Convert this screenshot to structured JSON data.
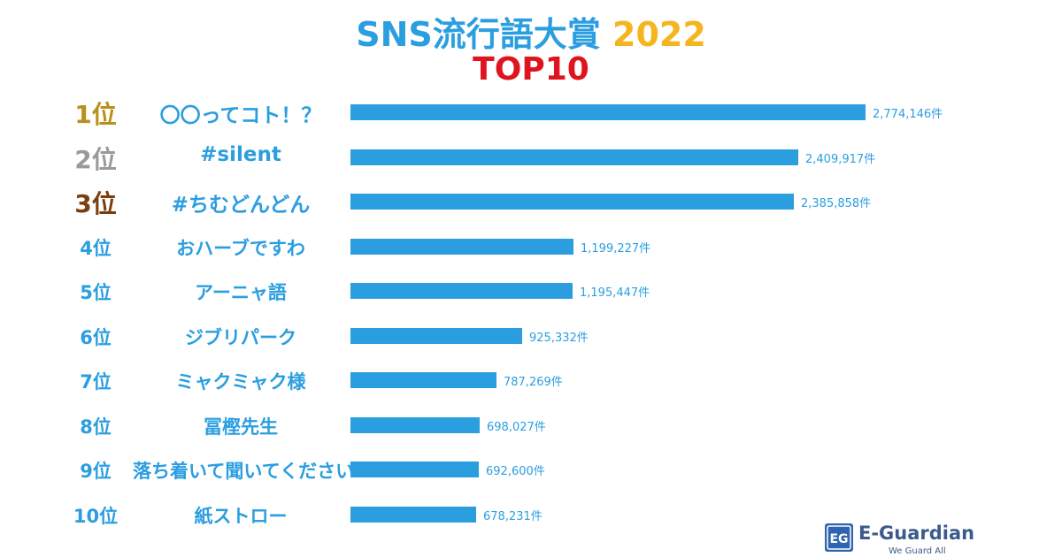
{
  "chart_data": {
    "type": "bar",
    "orientation": "horizontal",
    "title": "SNS流行語大賞",
    "title_year": "2022",
    "subtitle": "TOP10",
    "value_suffix": "件",
    "xlim": [
      0,
      2774146
    ],
    "rank_colors": [
      "#b8911a",
      "#9a9a9a",
      "#7a3d0e",
      "#2b9ee0",
      "#2b9ee0",
      "#2b9ee0",
      "#2b9ee0",
      "#2b9ee0",
      "#2b9ee0",
      "#2b9ee0"
    ],
    "bar_color": "#2b9ee0",
    "ranks": [
      "1位",
      "2位",
      "3位",
      "4位",
      "5位",
      "6位",
      "7位",
      "8位",
      "9位",
      "10位"
    ],
    "categories": [
      "〇〇ってコト！？",
      "#silent",
      "#ちむどんどん",
      "おハーブですわ",
      "アーニャ語",
      "ジブリパーク",
      "ミャクミャク様",
      "冨樫先生",
      "落ち着いて聞いてください",
      "紙ストロー"
    ],
    "values": [
      2774146,
      2409917,
      2385858,
      1199227,
      1195447,
      925332,
      787269,
      698027,
      692600,
      678231
    ],
    "value_labels": [
      "2,774,146件",
      "2,409,917件",
      "2,385,858件",
      "1,199,227件",
      "1,195,447件",
      "925,332件",
      "787,269件",
      "698,027件",
      "692,600件",
      "678,231件"
    ]
  },
  "logo": {
    "mark": "EG",
    "name": "E-Guardian",
    "tagline": "We Guard All"
  }
}
